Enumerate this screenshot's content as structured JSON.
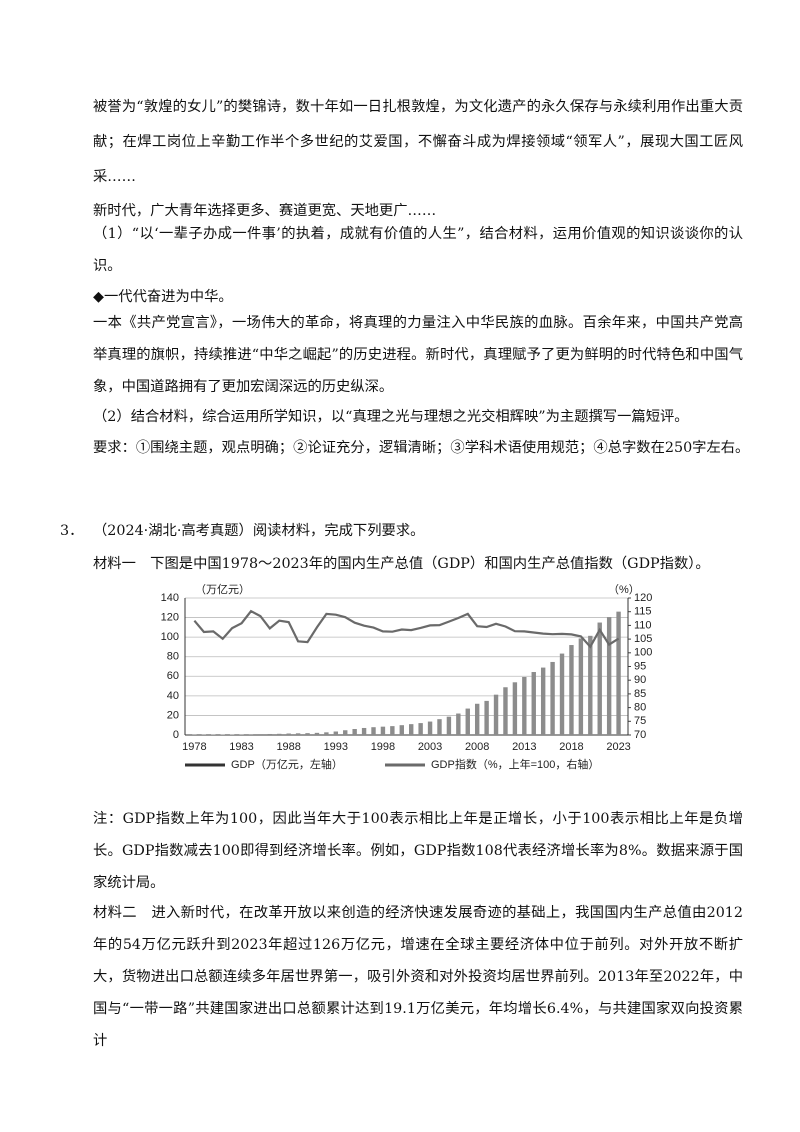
{
  "paragraphs": [
    "被誉为“敦煌的女儿”的樊锦诗，数十年如一日扎根敦煌，为文化遗产的永久保存与永续利用作出重大贡献；在焊工岗位上辛勤工作半个多世纪的艾爱国，不懈奋斗成为焊接领域“领军人”，展现大国工匠风采……",
    "新时代，广大青年选择更多、赛道更宽、天地更广……",
    "（1）“以‘一辈子办成一件事’的执着，成就有价值的人生”，结合材料，运用价值观的知识谈谈你的认识。",
    "◆一代代奋进为中华。",
    "一本《共产党宣言》，一场伟大的革命，将真理的力量注入中华民族的血脉。百余年来，中国共产党高举真理的旗帜，持续推进“中华之崛起”的历史进程。新时代，真理赋予了更为鲜明的时代特色和中国气象，中国道路拥有了更加宏阔深远的历史纵深。",
    "（2）结合材料，综合运用所学知识，以“真理之光与理想之光交相辉映”为主题撰写一篇短评。",
    "要求：①围绕主题，观点明确；②论证充分，逻辑清晰；③学科术语使用规范；④总字数在250字左右。"
  ],
  "question": {
    "number": "3．",
    "text": "（2024·湖北·高考真题）阅读材料，完成下列要求。"
  },
  "material1": "材料一　下图是中国1978～2023年的国内生产总值（GDP）和国内生产总值指数（GDP指数）。",
  "chart_data": {
    "type": "bar-line",
    "y_unit": "（万亿元）",
    "y2_unit": "（%）",
    "x": [
      1978,
      1979,
      1980,
      1981,
      1982,
      1983,
      1984,
      1985,
      1986,
      1987,
      1988,
      1989,
      1990,
      1991,
      1992,
      1993,
      1994,
      1995,
      1996,
      1997,
      1998,
      1999,
      2000,
      2001,
      2002,
      2003,
      2004,
      2005,
      2006,
      2007,
      2008,
      2009,
      2010,
      2011,
      2012,
      2013,
      2014,
      2015,
      2016,
      2017,
      2018,
      2019,
      2020,
      2021,
      2022,
      2023
    ],
    "xlim": [
      1977,
      2024
    ],
    "xticks": [
      1978,
      1983,
      1988,
      1993,
      1998,
      2003,
      2008,
      2013,
      2018,
      2023
    ],
    "ylim": [
      0,
      140
    ],
    "yticks": [
      0,
      20,
      40,
      60,
      80,
      100,
      120,
      140
    ],
    "y2lim": [
      70,
      120
    ],
    "y2ticks": [
      70,
      75,
      80,
      85,
      90,
      95,
      100,
      105,
      110,
      115,
      120
    ],
    "grid": true,
    "series": [
      {
        "name": "GDP（万亿元，左轴）",
        "color": "#8c8c8c",
        "kind": "bar",
        "values": [
          0.37,
          0.41,
          0.46,
          0.49,
          0.54,
          0.6,
          0.73,
          0.91,
          1.04,
          1.22,
          1.52,
          1.72,
          1.89,
          2.2,
          2.72,
          3.57,
          4.86,
          6.13,
          7.18,
          7.97,
          8.52,
          9.06,
          10.03,
          11.09,
          12.17,
          13.74,
          16.18,
          18.73,
          21.94,
          27.01,
          31.92,
          34.85,
          41.21,
          48.79,
          53.86,
          59.3,
          64.36,
          68.89,
          74.64,
          83.2,
          91.93,
          98.65,
          101.36,
          114.92,
          120.47,
          126.06
        ]
      },
      {
        "name": "GDP指数（%，上年=100，右轴）",
        "color": "#6a6a6a",
        "kind": "line",
        "axis": "y2",
        "values": [
          111.7,
          107.6,
          107.8,
          105.1,
          109.0,
          110.8,
          115.2,
          113.4,
          108.9,
          111.7,
          111.2,
          104.2,
          103.9,
          109.3,
          114.2,
          113.9,
          113.0,
          111.0,
          109.9,
          109.2,
          107.8,
          107.7,
          108.5,
          108.3,
          109.1,
          110.0,
          110.1,
          111.4,
          112.7,
          114.2,
          109.7,
          109.4,
          110.6,
          109.6,
          107.9,
          107.8,
          107.4,
          107.0,
          106.8,
          106.9,
          106.7,
          106.0,
          102.2,
          108.4,
          103.0,
          105.2
        ]
      }
    ]
  },
  "note": "注：GDP指数上年为100，因此当年大于100表示相比上年是正增长，小于100表示相比上年是负增长。GDP指数减去100即得到经济增长率。例如，GDP指数108代表经济增长率为8%。数据来源于国家统计局。",
  "material2": "材料二　进入新时代，在改革开放以来创造的经济快速发展奇迹的基础上，我国国内生产总值由2012年的54万亿元跃升到2023年超过126万亿元，增速在全球主要经济体中位于前列。对外开放不断扩大，货物进出口总额连续多年居世界第一，吸引外资和对外投资均居世界前列。2013年至2022年，中国与“一带一路”共建国家进出口总额累计达到19.1万亿美元，年均增长6.4%，与共建国家双向投资累计"
}
